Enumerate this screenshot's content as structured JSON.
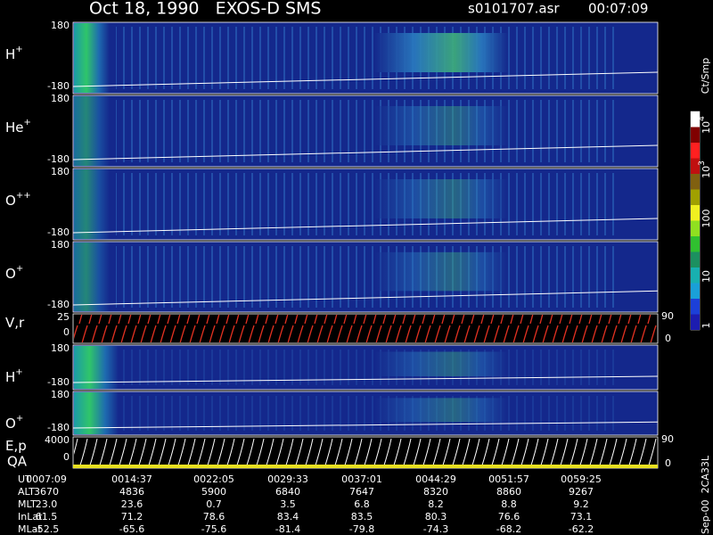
{
  "header": {
    "title": "Oct 18, 1990   EXOS-D SMS",
    "file": "s0101707.asr",
    "time": "00:07:09"
  },
  "panels": [
    {
      "label": {
        "base": "H",
        "sup": "+"
      },
      "top": "180",
      "bottom": "-180"
    },
    {
      "label": {
        "base": "He",
        "sup": "+"
      },
      "top": "180",
      "bottom": "-180"
    },
    {
      "label": {
        "base": "O",
        "sup": "++"
      },
      "top": "180",
      "bottom": "-180"
    },
    {
      "label": {
        "base": "O",
        "sup": "+"
      },
      "top": "180",
      "bottom": "-180"
    },
    {
      "label": {
        "base": "V,r"
      },
      "top": "25",
      "bottom": "0",
      "right_top": "90",
      "right_bottom": "0"
    },
    {
      "label": {
        "base": "H",
        "sup": "+"
      },
      "top": "180",
      "bottom": "-180"
    },
    {
      "label": {
        "base": "O",
        "sup": "+"
      },
      "top": "180",
      "bottom": "-180"
    },
    {
      "label": {
        "base": "E,p"
      },
      "label2": "QA",
      "top": "4000",
      "bottom": "0",
      "right_top": "90",
      "right_bottom": "0"
    }
  ],
  "colorbar": {
    "title": "Ct/Smp",
    "labels": [
      {
        "base": "10",
        "sup": "4"
      },
      {
        "base": "10",
        "sup": "3"
      },
      {
        "base": "100"
      },
      {
        "base": "10"
      },
      {
        "base": "1"
      }
    ]
  },
  "footer": "Sep-00  2CA33L",
  "table": {
    "rows": [
      {
        "label": "UT",
        "cells": [
          "0007:09",
          "0014:37",
          "0022:05",
          "0029:33",
          "0037:01",
          "0044:29",
          "0051:57",
          "0059:25"
        ]
      },
      {
        "label": "ALT",
        "cells": [
          "3670",
          "4836",
          "5900",
          "6840",
          "7647",
          "8320",
          "8860",
          "9267"
        ]
      },
      {
        "label": "MLT",
        "cells": [
          "23.0",
          "23.6",
          "0.7",
          "3.5",
          "6.8",
          "8.2",
          "8.8",
          "9.2"
        ]
      },
      {
        "label": "InLat",
        "cells": [
          "61.5",
          "71.2",
          "78.6",
          "83.4",
          "83.5",
          "80.3",
          "76.6",
          "73.1"
        ]
      },
      {
        "label": "MLat",
        "cells": [
          "-52.5",
          "-65.6",
          "-75.6",
          "-81.4",
          "-79.8",
          "-74.3",
          "-68.2",
          "-62.2"
        ]
      }
    ]
  }
}
